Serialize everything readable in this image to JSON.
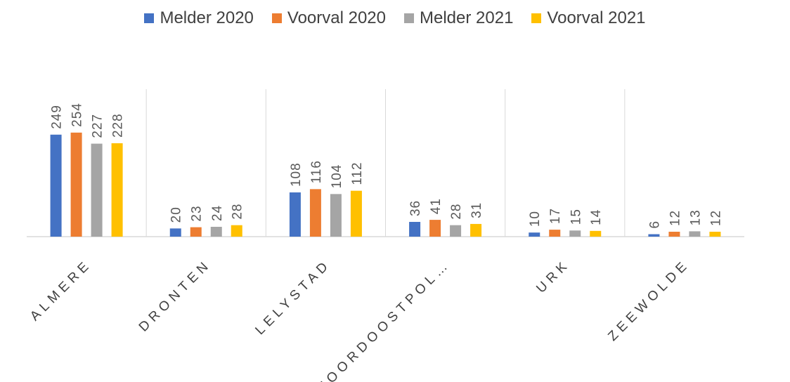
{
  "chart_data": {
    "type": "bar",
    "categories": [
      "ALMERE",
      "DRONTEN",
      "LELYSTAD",
      "NOORDOOSTPOL…",
      "URK",
      "ZEEWOLDE"
    ],
    "series": [
      {
        "name": "Melder 2020",
        "color": "#4472C4",
        "values": [
          249,
          20,
          108,
          36,
          10,
          6
        ]
      },
      {
        "name": "Voorval 2020",
        "color": "#ED7D31",
        "values": [
          254,
          23,
          116,
          41,
          17,
          12
        ]
      },
      {
        "name": "Melder 2021",
        "color": "#A5A5A5",
        "values": [
          227,
          24,
          104,
          28,
          15,
          13
        ]
      },
      {
        "name": "Voorval 2021",
        "color": "#FFC000",
        "values": [
          228,
          28,
          112,
          31,
          14,
          12
        ]
      }
    ],
    "ylim": [
      0,
      300
    ],
    "grid": "vertical separators between categories",
    "legend": "top-center",
    "data_labels": "rotated vertical, above bars"
  }
}
